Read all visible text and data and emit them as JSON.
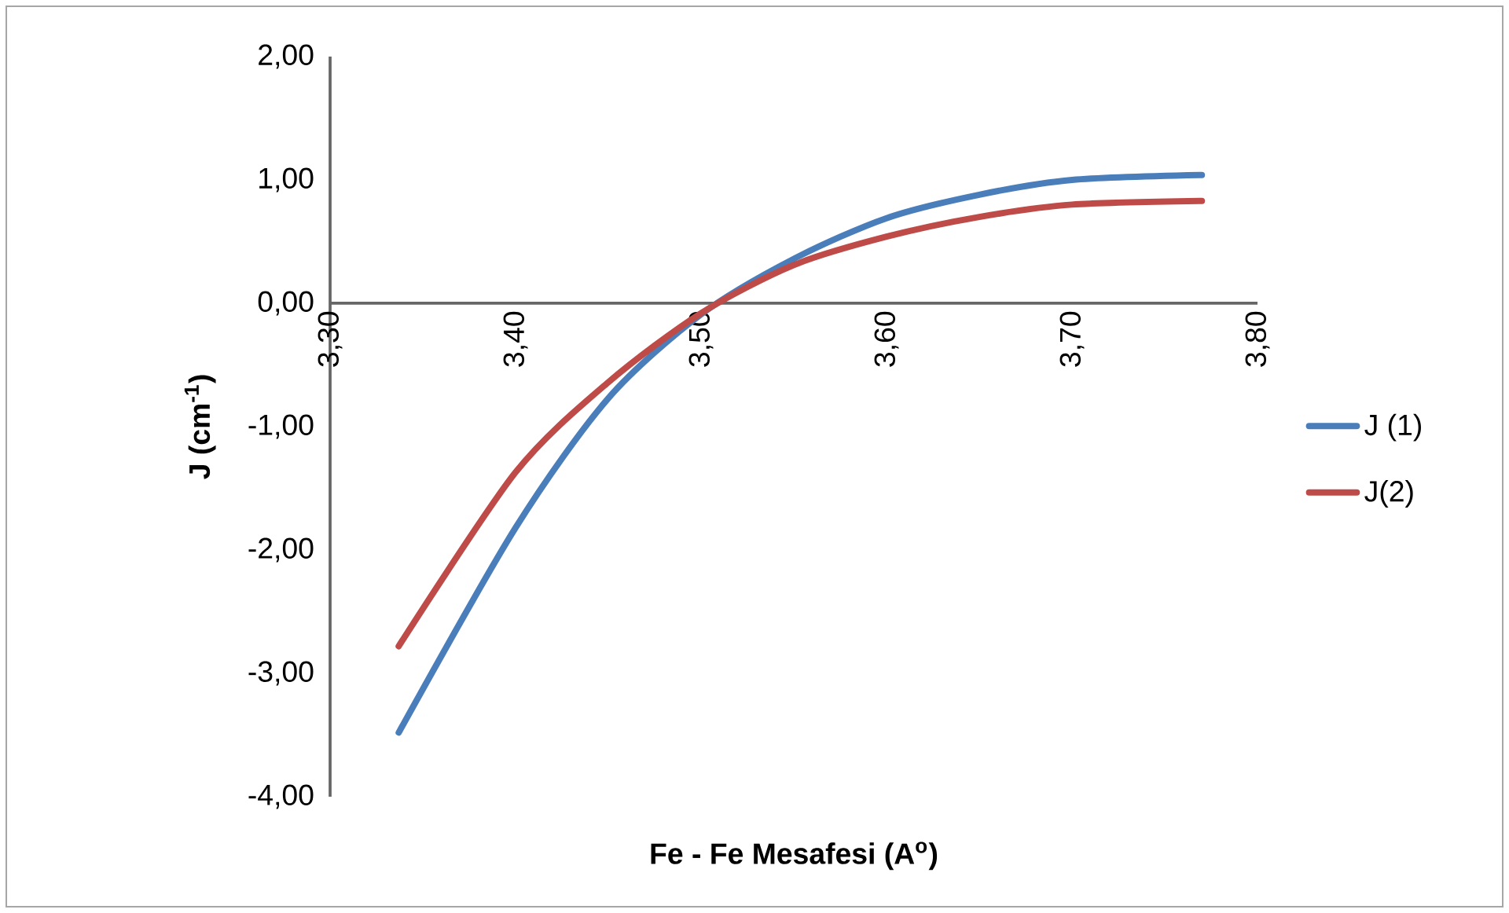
{
  "chart_data": {
    "type": "line",
    "xlabel": "Fe - Fe Mesafesi (A$^{o}$)",
    "ylabel": "J (cm$^{-1}$)",
    "x": [
      3.337,
      3.4,
      3.45,
      3.5,
      3.55,
      3.6,
      3.65,
      3.7,
      3.77
    ],
    "series": [
      {
        "name": "J (1)",
        "color": "#4a7ebb",
        "values": [
          -3.48,
          -1.82,
          -0.77,
          -0.09,
          0.36,
          0.69,
          0.88,
          1.0,
          1.04
        ]
      },
      {
        "name": "J(2)",
        "color": "#be4b48",
        "values": [
          -2.78,
          -1.37,
          -0.64,
          -0.08,
          0.31,
          0.54,
          0.7,
          0.8,
          0.83
        ]
      }
    ],
    "xlim": [
      3.3,
      3.8
    ],
    "ylim": [
      -4,
      2
    ],
    "xticks": [
      {
        "value": 3.3,
        "label": "3,30"
      },
      {
        "value": 3.4,
        "label": "3,40"
      },
      {
        "value": 3.5,
        "label": "3,50"
      },
      {
        "value": 3.6,
        "label": "3,60"
      },
      {
        "value": 3.7,
        "label": "3,70"
      },
      {
        "value": 3.8,
        "label": "3,80"
      }
    ],
    "yticks": [
      {
        "value": -4,
        "label": "-4,00"
      },
      {
        "value": -3,
        "label": "-3,00"
      },
      {
        "value": -2,
        "label": "-2,00"
      },
      {
        "value": -1,
        "label": "-1,00"
      },
      {
        "value": 0,
        "label": "0,00"
      },
      {
        "value": 1,
        "label": "1,00"
      },
      {
        "value": 2,
        "label": "2,00"
      }
    ],
    "legend": "right",
    "line_style": "solid"
  }
}
